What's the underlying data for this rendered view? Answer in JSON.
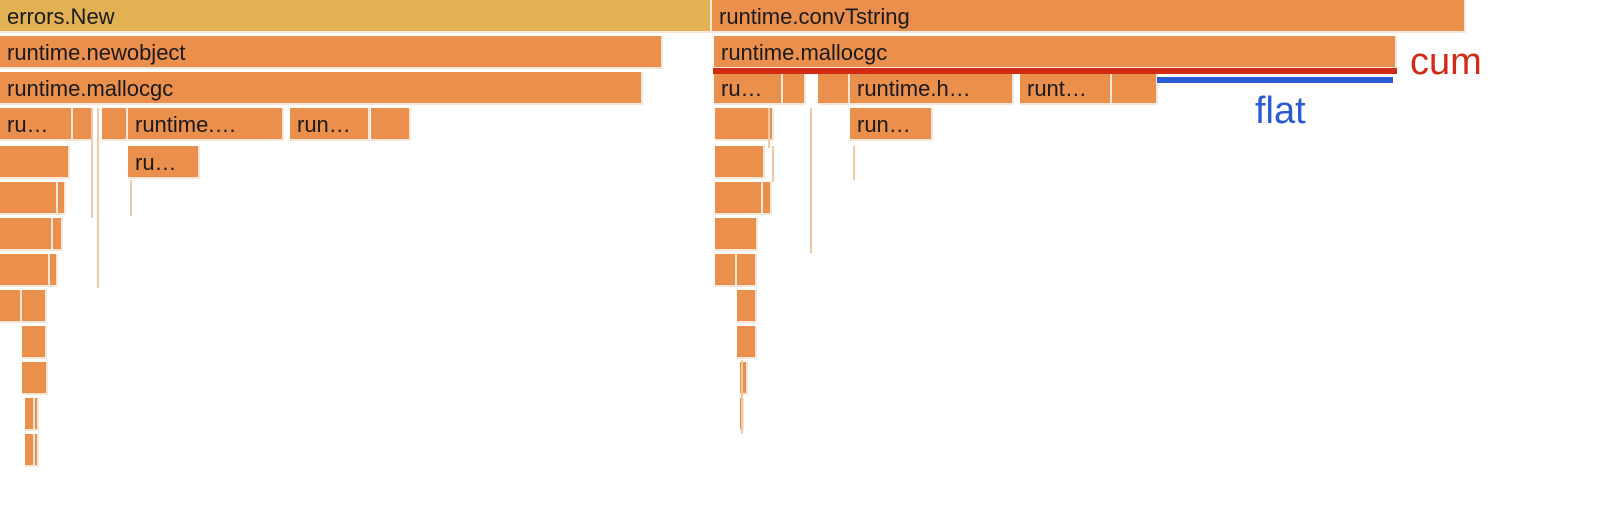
{
  "colors": {
    "frame": "#ea8f4c",
    "root_frame": "#e2b153",
    "frame_gap": "#f8e7d8",
    "cum": "#d02b16",
    "flat": "#2a5bd4",
    "label_text": "#1a1a1a"
  },
  "frames": [
    {
      "id": "errors-new",
      "label": "errors.New",
      "root": true
    },
    {
      "id": "runtime-convtstring",
      "label": "runtime.convTstring"
    },
    {
      "id": "runtime-newobject",
      "label": "runtime.newobject"
    },
    {
      "id": "runtime-mallocgc-left",
      "label": "runtime.mallocgc"
    },
    {
      "id": "runtime-mallocgc-right",
      "label": "runtime.mallocgc"
    },
    {
      "id": "l3-ru",
      "label": "ru…"
    },
    {
      "id": "l3-small-1",
      "label": ""
    },
    {
      "id": "l3-small-2",
      "label": ""
    },
    {
      "id": "l3-runtime",
      "label": "runtime.…"
    },
    {
      "id": "l3-run",
      "label": "run…"
    },
    {
      "id": "l3-small-3",
      "label": ""
    },
    {
      "id": "r2-ru",
      "label": "ru…"
    },
    {
      "id": "r2-small-1",
      "label": ""
    },
    {
      "id": "r2-small-2",
      "label": ""
    },
    {
      "id": "r2-runtime-h",
      "label": "runtime.h…"
    },
    {
      "id": "r2-runt",
      "label": "runt…"
    },
    {
      "id": "r2-small-3",
      "label": ""
    },
    {
      "id": "l4-a",
      "label": ""
    },
    {
      "id": "l4-ru",
      "label": "ru…"
    },
    {
      "id": "r3-a",
      "label": ""
    },
    {
      "id": "r3-run",
      "label": "run…"
    },
    {
      "id": "deep-1",
      "label": ""
    },
    {
      "id": "deep-2",
      "label": ""
    },
    {
      "id": "deep-3",
      "label": ""
    },
    {
      "id": "deep-4",
      "label": ""
    },
    {
      "id": "deep-5",
      "label": ""
    },
    {
      "id": "deep-6",
      "label": ""
    },
    {
      "id": "deep-7",
      "label": ""
    },
    {
      "id": "deep-8",
      "label": ""
    },
    {
      "id": "deep-9",
      "label": ""
    },
    {
      "id": "deep-10",
      "label": ""
    },
    {
      "id": "deep-11",
      "label": ""
    },
    {
      "id": "deep-12",
      "label": ""
    },
    {
      "id": "deep-13",
      "label": ""
    },
    {
      "id": "deep-14",
      "label": ""
    },
    {
      "id": "deep-15",
      "label": ""
    },
    {
      "id": "deep-16",
      "label": ""
    },
    {
      "id": "deep-17",
      "label": ""
    },
    {
      "id": "deep-18",
      "label": ""
    },
    {
      "id": "deep-19",
      "label": ""
    },
    {
      "id": "deep-20",
      "label": ""
    },
    {
      "id": "deep-21",
      "label": ""
    },
    {
      "id": "deep-22",
      "label": ""
    },
    {
      "id": "deep-23",
      "label": ""
    },
    {
      "id": "deep-24",
      "label": ""
    }
  ],
  "annotations": {
    "cum_label": "cum",
    "flat_label": "flat"
  }
}
